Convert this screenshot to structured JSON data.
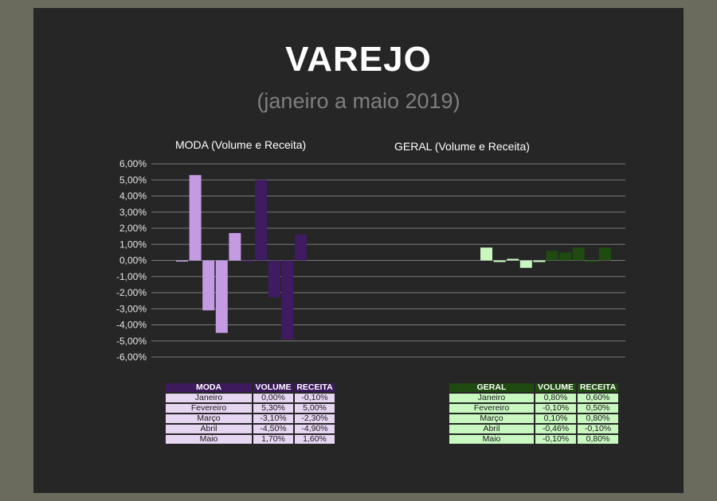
{
  "header": {
    "title": "VAREJO",
    "subtitle": "(janeiro a maio 2019)"
  },
  "colors": {
    "moda_volume": "#c49ae3",
    "moda_receita": "#3f1b61",
    "geral_volume": "#c8f7c0",
    "geral_receita": "#1f4a10",
    "gridline": "#7a7a7a",
    "background": "#262626"
  },
  "chart_data": [
    {
      "type": "bar",
      "title": "MODA (Volume e Receita)",
      "categories": [
        "Janeiro",
        "Fevereiro",
        "Março",
        "Abril",
        "Maio"
      ],
      "series": [
        {
          "name": "VOLUME",
          "values": [
            0.0,
            5.3,
            -3.1,
            -4.5,
            1.7
          ]
        },
        {
          "name": "RECEITA",
          "values": [
            -0.1,
            5.0,
            -2.3,
            -4.9,
            1.6
          ]
        }
      ],
      "ylim": [
        -6,
        6
      ],
      "yticks": [
        "6,00%",
        "5,00%",
        "4,00%",
        "3,00%",
        "2,00%",
        "1,00%",
        "0,00%",
        "-1,00%",
        "-2,00%",
        "-3,00%",
        "-4,00%",
        "-5,00%",
        "-6,00%"
      ],
      "grid": true
    },
    {
      "type": "bar",
      "title": "GERAL  (Volume e Receita)",
      "categories": [
        "Janeiro",
        "Fevereiro",
        "Março",
        "Abril",
        "Maio"
      ],
      "series": [
        {
          "name": "VOLUME",
          "values": [
            0.8,
            -0.1,
            0.1,
            -0.46,
            -0.1
          ]
        },
        {
          "name": "RECEITA",
          "values": [
            0.6,
            0.5,
            0.8,
            -0.1,
            0.8
          ]
        }
      ],
      "ylim": [
        -6,
        6
      ],
      "grid": true
    }
  ],
  "moda_table": {
    "headers": [
      "MODA",
      "VOLUME",
      "RECEITA"
    ],
    "rows": [
      [
        "Janeiro",
        "0,00%",
        "-0,10%"
      ],
      [
        "Fevereiro",
        "5,30%",
        "5,00%"
      ],
      [
        "Março",
        "-3,10%",
        "-2,30%"
      ],
      [
        "Abril",
        "-4,50%",
        "-4,90%"
      ],
      [
        "Maio",
        "1,70%",
        "1,60%"
      ]
    ]
  },
  "geral_table": {
    "headers": [
      "GERAL",
      "VOLUME",
      "RECEITA"
    ],
    "rows": [
      [
        "Janeiro",
        "0,80%",
        "0,60%"
      ],
      [
        "Fevereiro",
        "-0,10%",
        "0,50%"
      ],
      [
        "Março",
        "0,10%",
        "0,80%"
      ],
      [
        "Abril",
        "-0,46%",
        "-0,10%"
      ],
      [
        "Maio",
        "-0,10%",
        "0,80%"
      ]
    ]
  }
}
